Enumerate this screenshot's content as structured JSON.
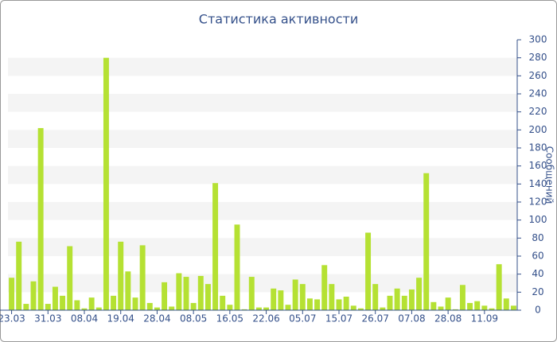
{
  "chart_data": {
    "type": "bar",
    "title": "Статистика активности",
    "y_axis_label": "Сообщений",
    "categories": [
      "23.03",
      null,
      null,
      null,
      null,
      "31.03",
      null,
      null,
      null,
      null,
      "08.04",
      null,
      null,
      null,
      null,
      "19.04",
      null,
      null,
      null,
      null,
      "28.04",
      null,
      null,
      null,
      null,
      "08.05",
      null,
      null,
      null,
      null,
      "16.05",
      null,
      null,
      null,
      null,
      "22.06",
      null,
      null,
      null,
      null,
      "05.07",
      null,
      null,
      null,
      null,
      "15.07",
      null,
      null,
      null,
      null,
      "26.07",
      null,
      null,
      null,
      null,
      "07.08",
      null,
      null,
      null,
      null,
      "28.08",
      null,
      null,
      null,
      null,
      "11.09",
      null,
      null,
      null,
      null
    ],
    "values": [
      36,
      76,
      7,
      32,
      202,
      7,
      26,
      16,
      71,
      11,
      2,
      14,
      3,
      280,
      16,
      76,
      43,
      14,
      72,
      8,
      3,
      31,
      4,
      41,
      37,
      8,
      38,
      29,
      141,
      16,
      6,
      95,
      1,
      37,
      3,
      3,
      24,
      22,
      6,
      34,
      29,
      13,
      12,
      50,
      29,
      12,
      15,
      5,
      2,
      86,
      29,
      3,
      16,
      24,
      16,
      23,
      36,
      152,
      9,
      4,
      14,
      1,
      28,
      8,
      10,
      5,
      2,
      51,
      13,
      5
    ],
    "color": "#b5e133",
    "ylim": [
      0,
      300
    ],
    "yticks": [
      0,
      20,
      40,
      60,
      80,
      100,
      120,
      140,
      160,
      180,
      200,
      220,
      240,
      260,
      280,
      300
    ],
    "y_axis_side": "right",
    "grid": "bands"
  }
}
